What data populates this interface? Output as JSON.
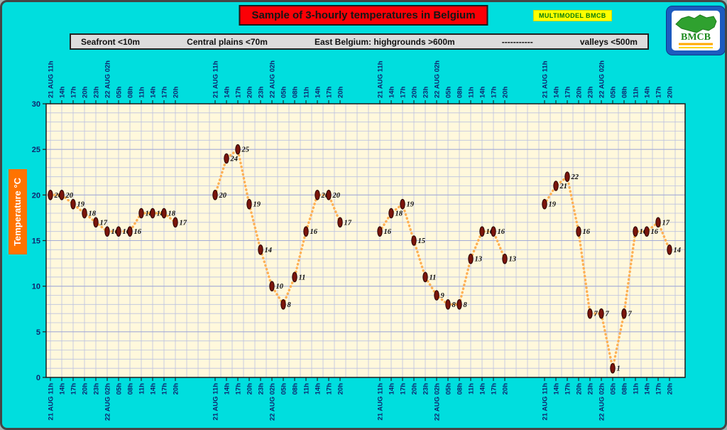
{
  "page": {
    "bg_color": "#00dede"
  },
  "header": {
    "title": "Sample of 3-hourly temperatures in Belgium",
    "title_bg": "#fb0006",
    "badge": "MULTIMODEL BMCB",
    "badge_bg": "#ffff00",
    "badge_color": "#0a7a0a",
    "logo_text": "BMCB"
  },
  "legend": {
    "items": [
      "Seafront <10m",
      "Central plains <70m",
      "East Belgium: highgrounds >600m",
      "-----------",
      "valleys <500m"
    ]
  },
  "axis": {
    "y_title": "Temperature °C"
  },
  "chart_data": {
    "type": "line",
    "title": "Sample of 3-hourly temperatures in Belgium",
    "ylabel": "Temperature °C",
    "ylim": [
      0,
      30
    ],
    "y_ticks": [
      0,
      5,
      10,
      15,
      20,
      25,
      30
    ],
    "grid": true,
    "legend_position": "top",
    "x": [
      "21 AUG 11h",
      "14h",
      "17h",
      "20h",
      "23h",
      "22 AUG 02h",
      "05h",
      "08h",
      "11h",
      "14h",
      "17h",
      "20h"
    ],
    "series": [
      {
        "name": "Seafront <10m",
        "values": [
          20,
          20,
          19,
          18,
          17,
          16,
          16,
          16,
          18,
          18,
          18,
          17
        ]
      },
      {
        "name": "Central plains <70m",
        "values": [
          20,
          24,
          25,
          19,
          14,
          10,
          8,
          11,
          16,
          20,
          20,
          17
        ]
      },
      {
        "name": "East Belgium: highgrounds >600m",
        "values": [
          16,
          18,
          19,
          15,
          11,
          9,
          8,
          8,
          13,
          16,
          16,
          13
        ]
      },
      {
        "name": "East Belgium: valleys <500m",
        "values": [
          19,
          21,
          22,
          16,
          7,
          7,
          1,
          7,
          16,
          16,
          17,
          14
        ]
      }
    ],
    "plot_bg": "#fff8dc",
    "grid_color": "#bcc2e0",
    "grid_major_color": "#a3abd6",
    "axis_label_color": "#10246e",
    "line_color": "#ffb054",
    "marker_color": "#7a150c"
  }
}
